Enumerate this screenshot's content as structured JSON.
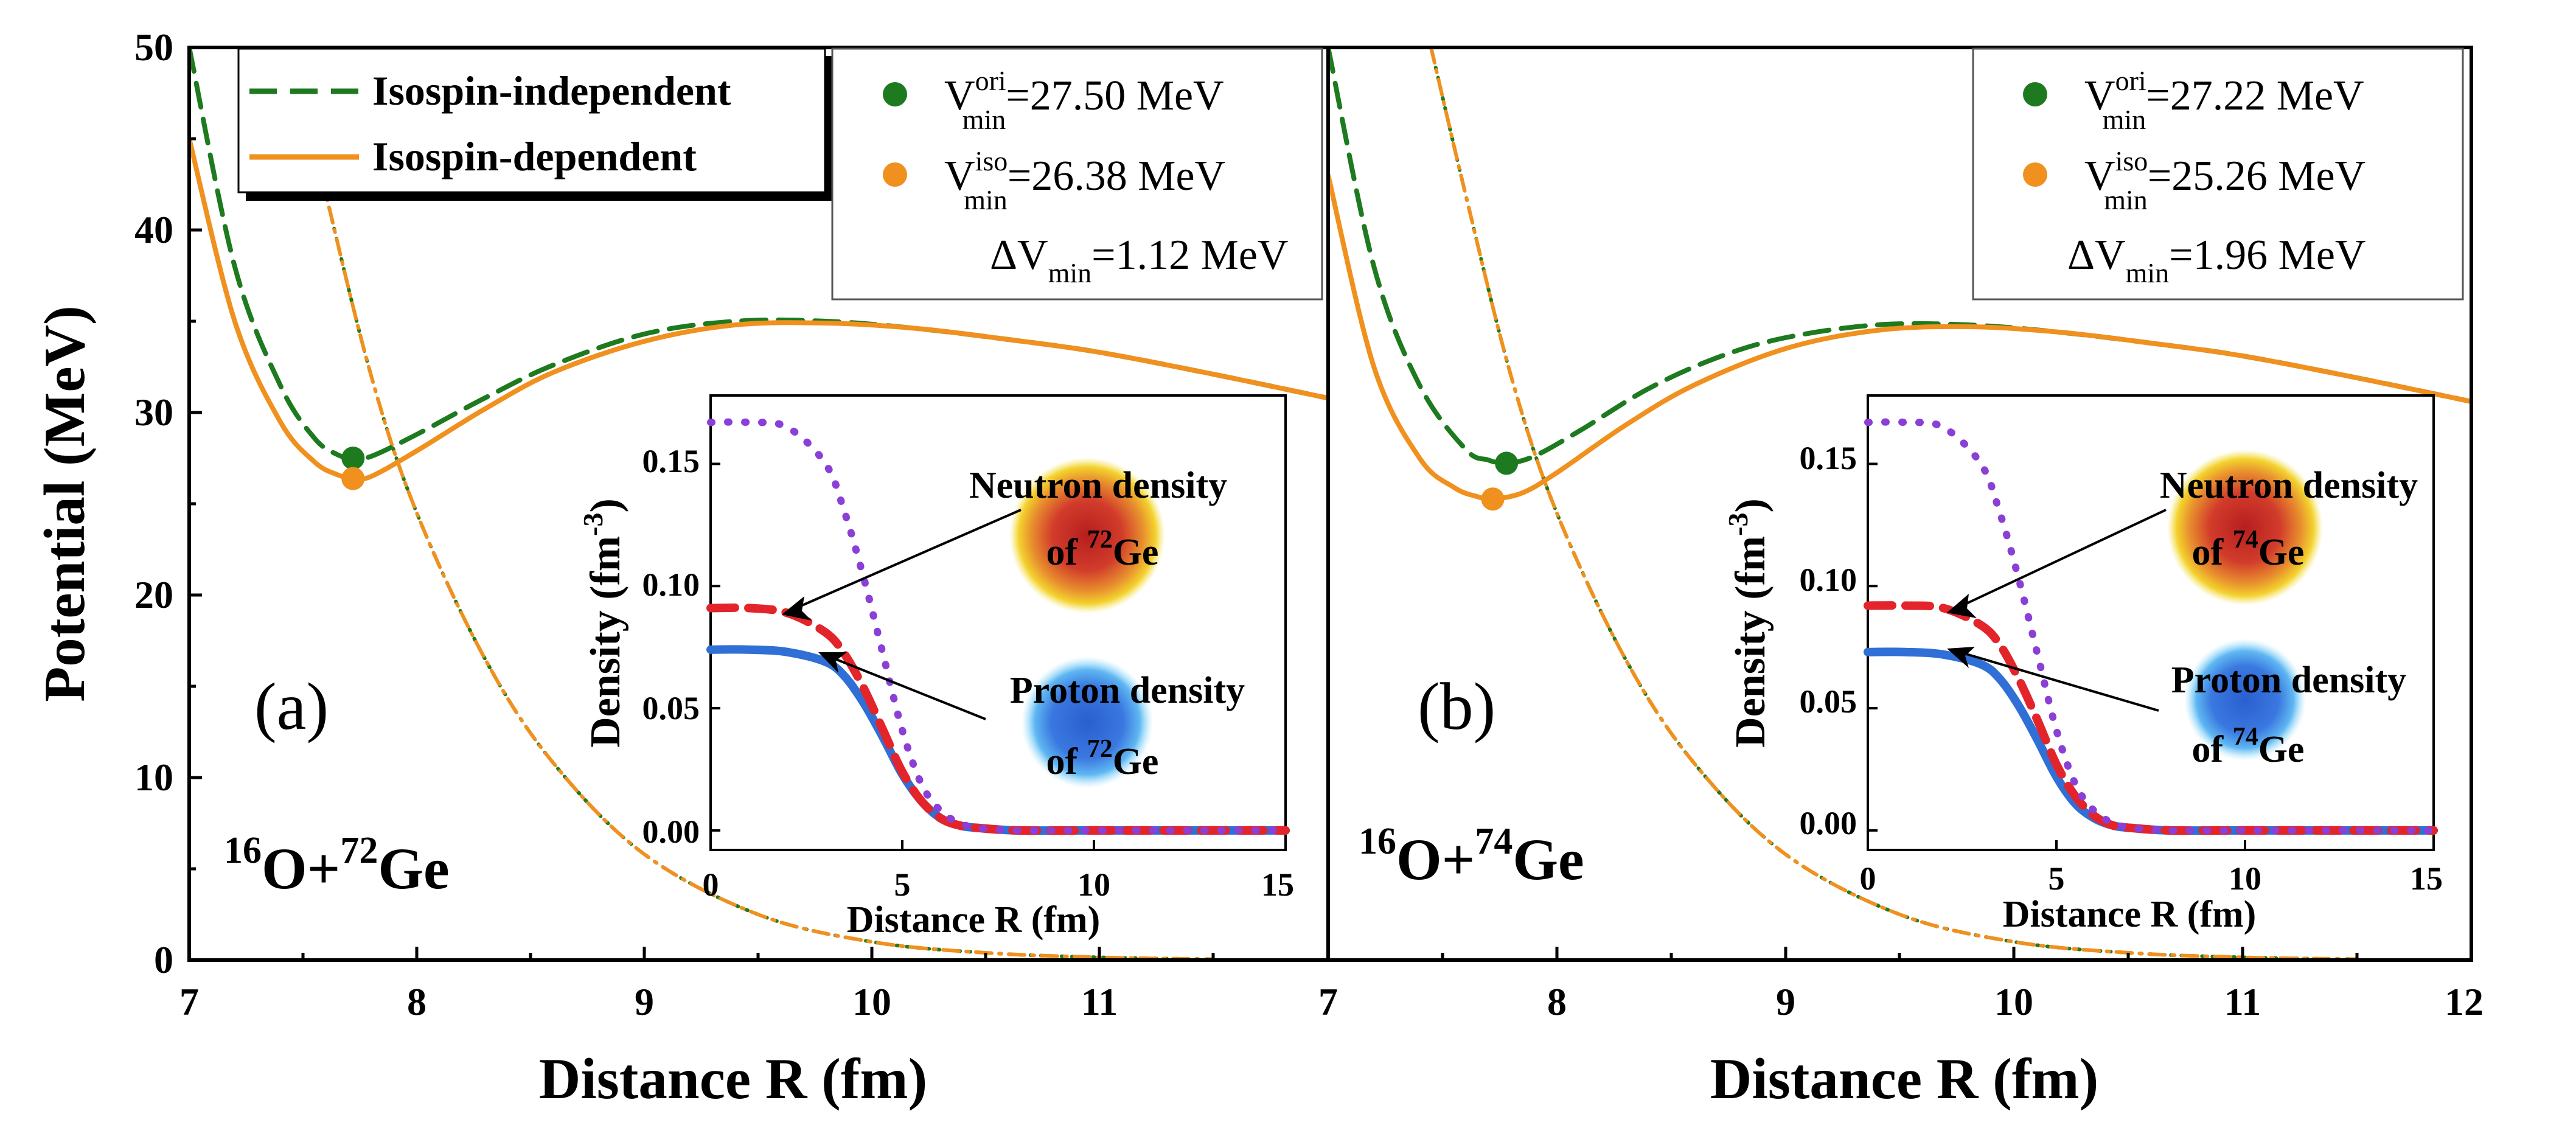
{
  "figure": {
    "ylabel": "Potential (MeV)",
    "xlabel": "Distance R (fm)",
    "y_ticks": [
      "0",
      "10",
      "20",
      "30",
      "40",
      "50"
    ],
    "a_x_ticks": [
      "7",
      "8",
      "9",
      "10",
      "11"
    ],
    "b_x_ticks": [
      "7",
      "8",
      "9",
      "10",
      "11",
      "12"
    ],
    "legend": {
      "independent": "Isospin-independent",
      "dependent": "Isospin-dependent"
    },
    "colors": {
      "independent": "#1e7a1e",
      "dependent": "#f0901e",
      "proton": "#2f6fd6",
      "neutron": "#e3242b",
      "dotted": "#8a3fd6"
    }
  },
  "panel_a": {
    "label": "(a)",
    "reaction": {
      "p1": "16",
      "t1": "O+",
      "p2": "72",
      "t2": "Ge"
    },
    "vori": {
      "sup": "ori",
      "sub": "min",
      "value": "=27.50 MeV"
    },
    "viso": {
      "sup": "iso",
      "sub": "min",
      "value": "=26.38 MeV"
    },
    "dv": {
      "pre": "ΔV",
      "sub": "min",
      "value": "=1.12  MeV"
    },
    "inset": {
      "ylabel": "Density (fm",
      "ylabel_sup": "-3",
      "ylabel_end": ")",
      "xlabel": "Distance R (fm)",
      "y_ticks": [
        "0.00",
        "0.05",
        "0.10",
        "0.15"
      ],
      "x_ticks": [
        "0",
        "5",
        "10",
        "15"
      ],
      "neutron_label": "Neutron density",
      "neutron_of": "of ",
      "neutron_mass": "72",
      "neutron_el": "Ge",
      "proton_label": "Proton density",
      "proton_of": "of ",
      "proton_mass": "72",
      "proton_el": "Ge"
    }
  },
  "panel_b": {
    "label": "(b)",
    "reaction": {
      "p1": "16",
      "t1": "O+",
      "p2": "74",
      "t2": "Ge"
    },
    "vori": {
      "sup": "ori",
      "sub": "min",
      "value": "=27.22 MeV"
    },
    "viso": {
      "sup": "iso",
      "sub": "min",
      "value": "=25.26 MeV"
    },
    "dv": {
      "pre": "ΔV",
      "sub": "min",
      "value": "=1.96  MeV"
    },
    "inset": {
      "ylabel": "Density (fm",
      "ylabel_sup": "-3",
      "ylabel_end": ")",
      "xlabel": "Distance R (fm)",
      "y_ticks": [
        "0.00",
        "0.05",
        "0.10",
        "0.15"
      ],
      "x_ticks": [
        "0",
        "5",
        "10",
        "15"
      ],
      "neutron_label": "Neutron density",
      "neutron_of": "of ",
      "neutron_mass": "74",
      "neutron_el": "Ge",
      "proton_label": "Proton density",
      "proton_of": "of ",
      "proton_mass": "74",
      "proton_el": "Ge"
    }
  },
  "chart_data": [
    {
      "type": "line",
      "xlabel": "Distance R (fm)",
      "ylabel": "Potential (MeV)",
      "xlim": [
        7,
        12
      ],
      "ylim": [
        0,
        50
      ],
      "panel": "(a)",
      "series": [
        {
          "name": "Isospin-independent",
          "style": "dashed",
          "x": [
            7.0,
            7.2,
            7.4,
            7.55,
            7.65,
            7.72,
            7.8,
            8.0,
            8.3,
            8.6,
            9.0,
            9.4,
            9.8,
            10.2,
            10.6,
            11.0,
            11.5,
            12.0
          ],
          "y": [
            50,
            38,
            31.5,
            28.6,
            27.7,
            27.5,
            27.6,
            28.8,
            30.8,
            32.6,
            34.3,
            35.0,
            35.0,
            34.6,
            34.0,
            33.3,
            32.1,
            30.8
          ]
        },
        {
          "name": "Isospin-dependent",
          "style": "solid",
          "x": [
            7.0,
            7.2,
            7.4,
            7.55,
            7.65,
            7.72,
            7.8,
            8.0,
            8.3,
            8.6,
            9.0,
            9.4,
            9.8,
            10.2,
            10.6,
            11.0,
            11.5,
            12.0
          ],
          "y": [
            45,
            35,
            29.5,
            27.3,
            26.6,
            26.4,
            26.5,
            27.9,
            30.2,
            32.2,
            33.9,
            34.8,
            34.9,
            34.6,
            34.0,
            33.3,
            32.1,
            30.8
          ]
        },
        {
          "name": "",
          "style": "dotted",
          "x": [
            7.45,
            7.6,
            7.8,
            8.0,
            8.3,
            8.6,
            9.0,
            9.5,
            10.0,
            10.5,
            11.0,
            11.5
          ],
          "y": [
            50,
            42,
            32,
            24.5,
            16.5,
            10.8,
            5.8,
            2.5,
            1.0,
            0.4,
            0.15,
            0.05
          ]
        },
        {
          "name": "",
          "style": "dash-dot",
          "x": [
            7.45,
            7.6,
            7.8,
            8.0,
            8.3,
            8.6,
            9.0,
            9.5,
            10.0,
            10.5,
            11.0,
            11.5
          ],
          "y": [
            50,
            42,
            32,
            24.5,
            16.5,
            10.8,
            5.8,
            2.5,
            1.0,
            0.4,
            0.15,
            0.05
          ]
        }
      ],
      "minima": [
        {
          "x": 7.72,
          "y": 27.5,
          "color": "#1e7a1e"
        },
        {
          "x": 7.72,
          "y": 26.38,
          "color": "#f0901e"
        }
      ]
    },
    {
      "type": "line",
      "xlabel": "Distance R (fm)",
      "xlim": [
        7,
        12
      ],
      "ylim": [
        0,
        50
      ],
      "panel": "(b)",
      "series": [
        {
          "name": "Isospin-independent",
          "style": "dashed",
          "x": [
            7.0,
            7.2,
            7.4,
            7.6,
            7.7,
            7.78,
            7.9,
            8.1,
            8.4,
            8.7,
            9.0,
            9.4,
            9.8,
            10.2,
            10.6,
            11.0,
            11.5,
            12.0
          ],
          "y": [
            50,
            38,
            31.5,
            28.0,
            27.4,
            27.22,
            27.6,
            29.0,
            31.3,
            33.0,
            34.1,
            34.8,
            34.8,
            34.4,
            33.8,
            33.1,
            31.9,
            30.6
          ]
        },
        {
          "name": "Isospin-dependent",
          "style": "solid",
          "x": [
            7.0,
            7.2,
            7.4,
            7.55,
            7.65,
            7.72,
            7.85,
            8.0,
            8.3,
            8.6,
            9.0,
            9.4,
            9.8,
            10.2,
            10.6,
            11.0,
            11.5,
            12.0
          ],
          "y": [
            43,
            32.5,
            27.5,
            25.9,
            25.4,
            25.26,
            25.6,
            26.7,
            29.3,
            31.5,
            33.5,
            34.5,
            34.7,
            34.4,
            33.8,
            33.1,
            31.9,
            30.6
          ]
        },
        {
          "name": "",
          "style": "dotted",
          "x": [
            7.45,
            7.6,
            7.8,
            8.0,
            8.3,
            8.6,
            9.0,
            9.5,
            10.0,
            10.5,
            11.0,
            11.5
          ],
          "y": [
            50,
            42,
            32,
            24.5,
            16.5,
            10.8,
            5.8,
            2.5,
            1.0,
            0.4,
            0.15,
            0.05
          ]
        },
        {
          "name": "",
          "style": "dash-dot",
          "x": [
            7.45,
            7.6,
            7.8,
            8.0,
            8.3,
            8.6,
            9.0,
            9.5,
            10.0,
            10.5,
            11.0,
            11.5
          ],
          "y": [
            50,
            42,
            32,
            24.5,
            16.5,
            10.8,
            5.8,
            2.5,
            1.0,
            0.4,
            0.15,
            0.05
          ]
        }
      ],
      "minima": [
        {
          "x": 7.78,
          "y": 27.22,
          "color": "#1e7a1e"
        },
        {
          "x": 7.72,
          "y": 25.26,
          "color": "#f0901e"
        }
      ]
    },
    {
      "type": "line",
      "panel": "(a) inset",
      "xlabel": "Distance R (fm)",
      "ylabel": "Density (fm-3)",
      "xlim": [
        0,
        15
      ],
      "ylim": [
        -0.008,
        0.178
      ],
      "series": [
        {
          "name": "Proton density of 72Ge",
          "style": "solid",
          "x": [
            0,
            1,
            2,
            3,
            3.5,
            4,
            4.5,
            5,
            5.5,
            6,
            6.5,
            7,
            8,
            10,
            15
          ],
          "y": [
            0.074,
            0.074,
            0.073,
            0.069,
            0.063,
            0.052,
            0.038,
            0.023,
            0.012,
            0.005,
            0.002,
            0.001,
            0,
            0,
            0
          ]
        },
        {
          "name": "Neutron density of 72Ge",
          "style": "dashed",
          "x": [
            0,
            1,
            2,
            3,
            3.5,
            4,
            4.5,
            5,
            5.5,
            6,
            6.5,
            7,
            8,
            10,
            15
          ],
          "y": [
            0.091,
            0.091,
            0.089,
            0.081,
            0.072,
            0.058,
            0.041,
            0.024,
            0.012,
            0.005,
            0.002,
            0.001,
            0,
            0,
            0
          ]
        },
        {
          "name": "",
          "style": "dotted",
          "x": [
            0,
            1,
            2,
            3,
            3.5,
            4,
            4.5,
            5,
            5.5,
            6,
            6.5,
            7,
            8,
            10,
            15
          ],
          "y": [
            0.167,
            0.167,
            0.165,
            0.15,
            0.13,
            0.103,
            0.072,
            0.041,
            0.019,
            0.008,
            0.003,
            0.001,
            0,
            0,
            0
          ]
        }
      ]
    },
    {
      "type": "line",
      "panel": "(b) inset",
      "xlabel": "Distance R (fm)",
      "ylabel": "Density (fm-3)",
      "xlim": [
        0,
        15
      ],
      "ylim": [
        -0.008,
        0.178
      ],
      "series": [
        {
          "name": "Proton density of 74Ge",
          "style": "solid",
          "x": [
            0,
            1,
            2,
            3,
            3.5,
            4,
            4.5,
            5,
            5.5,
            6,
            6.5,
            7,
            8,
            10,
            15
          ],
          "y": [
            0.073,
            0.073,
            0.072,
            0.068,
            0.062,
            0.051,
            0.037,
            0.022,
            0.011,
            0.005,
            0.002,
            0.001,
            0,
            0,
            0
          ]
        },
        {
          "name": "Neutron density of 74Ge",
          "style": "dashed",
          "x": [
            0,
            1,
            2,
            3,
            3.5,
            4,
            4.5,
            5,
            5.5,
            6,
            6.5,
            7,
            8,
            10,
            15
          ],
          "y": [
            0.092,
            0.092,
            0.091,
            0.084,
            0.076,
            0.062,
            0.045,
            0.027,
            0.014,
            0.006,
            0.002,
            0.001,
            0,
            0,
            0
          ]
        },
        {
          "name": "",
          "style": "dotted",
          "x": [
            0,
            1,
            2,
            3,
            3.5,
            4,
            4.5,
            5,
            5.5,
            6,
            6.5,
            7,
            8,
            10,
            15
          ],
          "y": [
            0.167,
            0.167,
            0.165,
            0.15,
            0.13,
            0.103,
            0.072,
            0.041,
            0.019,
            0.008,
            0.003,
            0.001,
            0,
            0,
            0
          ]
        }
      ]
    }
  ]
}
